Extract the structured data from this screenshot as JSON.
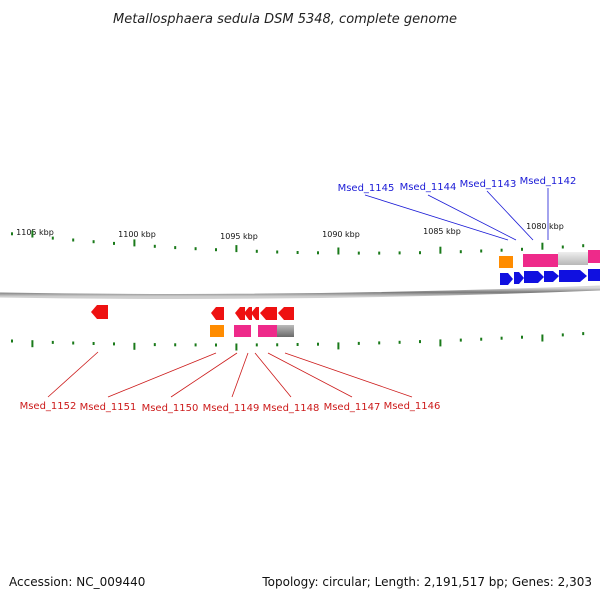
{
  "title": "Metallosphaera sedula DSM 5348, complete genome",
  "footer": {
    "accession": "Accession: NC_009440",
    "summary": "Topology: circular; Length: 2,191,517 bp; Genes: 2,303"
  },
  "ticks": [
    "1105 kbp",
    "1100 kbp",
    "1095 kbp",
    "1090 kbp",
    "1085 kbp",
    "1080 kbp"
  ],
  "top_genes": [
    "Msed_1145",
    "Msed_1144",
    "Msed_1143",
    "Msed_1142"
  ],
  "bottom_genes": [
    "Msed_1152",
    "Msed_1151",
    "Msed_1150",
    "Msed_1149",
    "Msed_1148",
    "Msed_1147",
    "Msed_1146"
  ],
  "colors": {
    "forward_cds": "#1010e0",
    "reverse_cds": "#ee1111",
    "rna": "#ff8c00",
    "magenta": "#ee2a8a",
    "tick": "#1a7a1a",
    "genome_line": "#888888",
    "top_leader": "#1a1ad6",
    "bottom_leader": "#cc1a1a"
  }
}
